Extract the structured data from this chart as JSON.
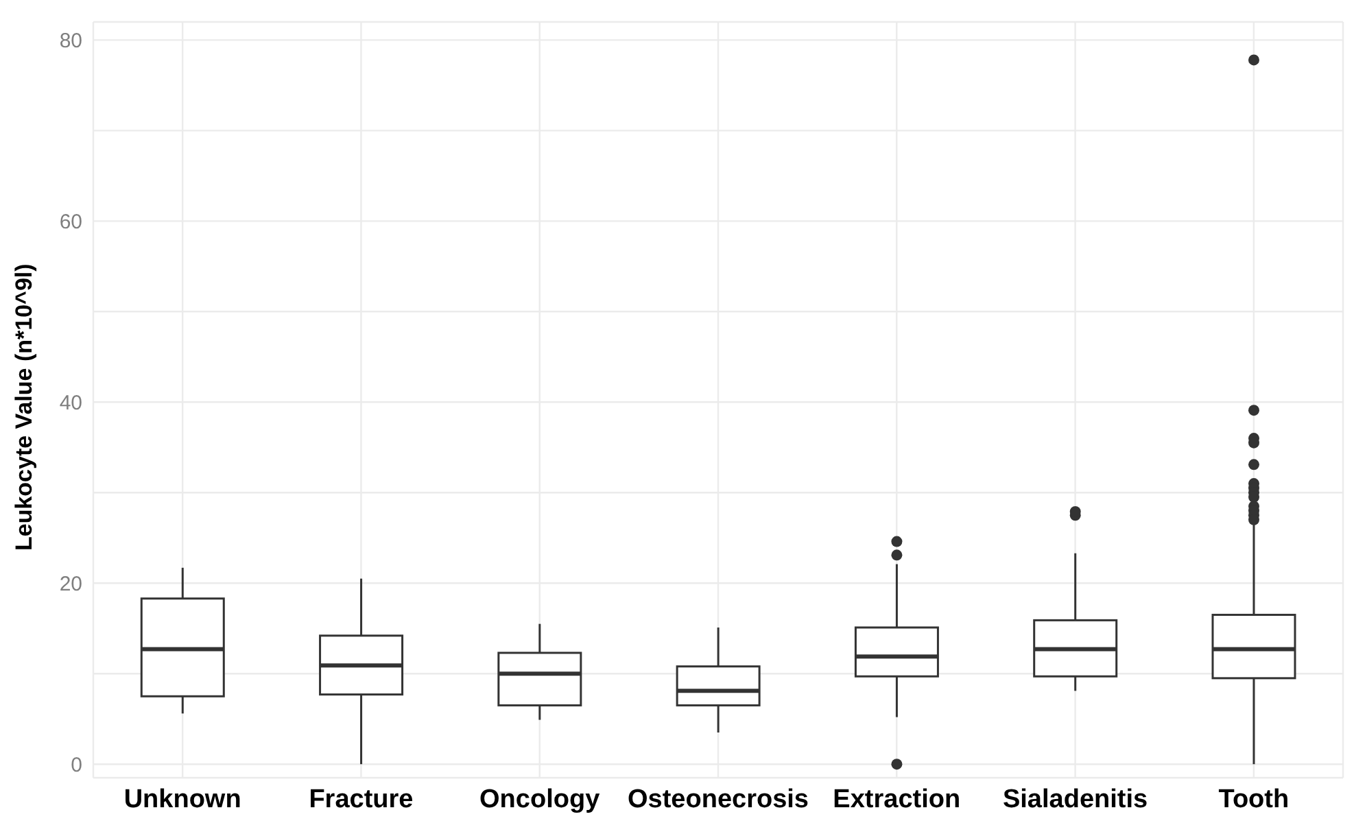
{
  "chart_data": {
    "type": "box",
    "ylabel": "Leukocyte Value (n*10^9l)",
    "categories": [
      "Unknown",
      "Fracture",
      "Oncology",
      "Osteonecrosis",
      "Extraction",
      "Sialadenitis",
      "Tooth"
    ],
    "boxes": [
      {
        "low": 5.6,
        "q1": 7.5,
        "median": 12.7,
        "q3": 18.3,
        "high": 21.7
      },
      {
        "low": 0,
        "q1": 7.7,
        "median": 10.9,
        "q3": 14.2,
        "high": 20.5
      },
      {
        "low": 4.9,
        "q1": 6.5,
        "median": 10.0,
        "q3": 12.3,
        "high": 15.5
      },
      {
        "low": 3.5,
        "q1": 6.5,
        "median": 8.1,
        "q3": 10.8,
        "high": 15.1
      },
      {
        "low": 5.2,
        "q1": 9.7,
        "median": 11.9,
        "q3": 15.1,
        "high": 22.1,
        "outliers": [
          24.6,
          23.1,
          0
        ]
      },
      {
        "low": 8.1,
        "q1": 9.7,
        "median": 12.7,
        "q3": 15.9,
        "high": 23.3,
        "outliers": [
          27.5,
          27.9
        ]
      },
      {
        "low": 0,
        "q1": 9.5,
        "median": 12.7,
        "q3": 16.5,
        "high": 26.5,
        "outliers": [
          77.8,
          39.1,
          36.0,
          35.5,
          33.1,
          31.0,
          30.5,
          30.0,
          29.5,
          28.5,
          28.0,
          27.5,
          27.0
        ]
      }
    ],
    "color": "#333333",
    "ylim": [
      -1.5,
      82
    ],
    "yticks": [
      0,
      {
        "value": 10,
        "label": null
      },
      20,
      {
        "value": 30,
        "label": null
      },
      40,
      {
        "value": 50,
        "label": null
      },
      60,
      {
        "value": 70,
        "label": null
      },
      80
    ],
    "grid": true
  }
}
